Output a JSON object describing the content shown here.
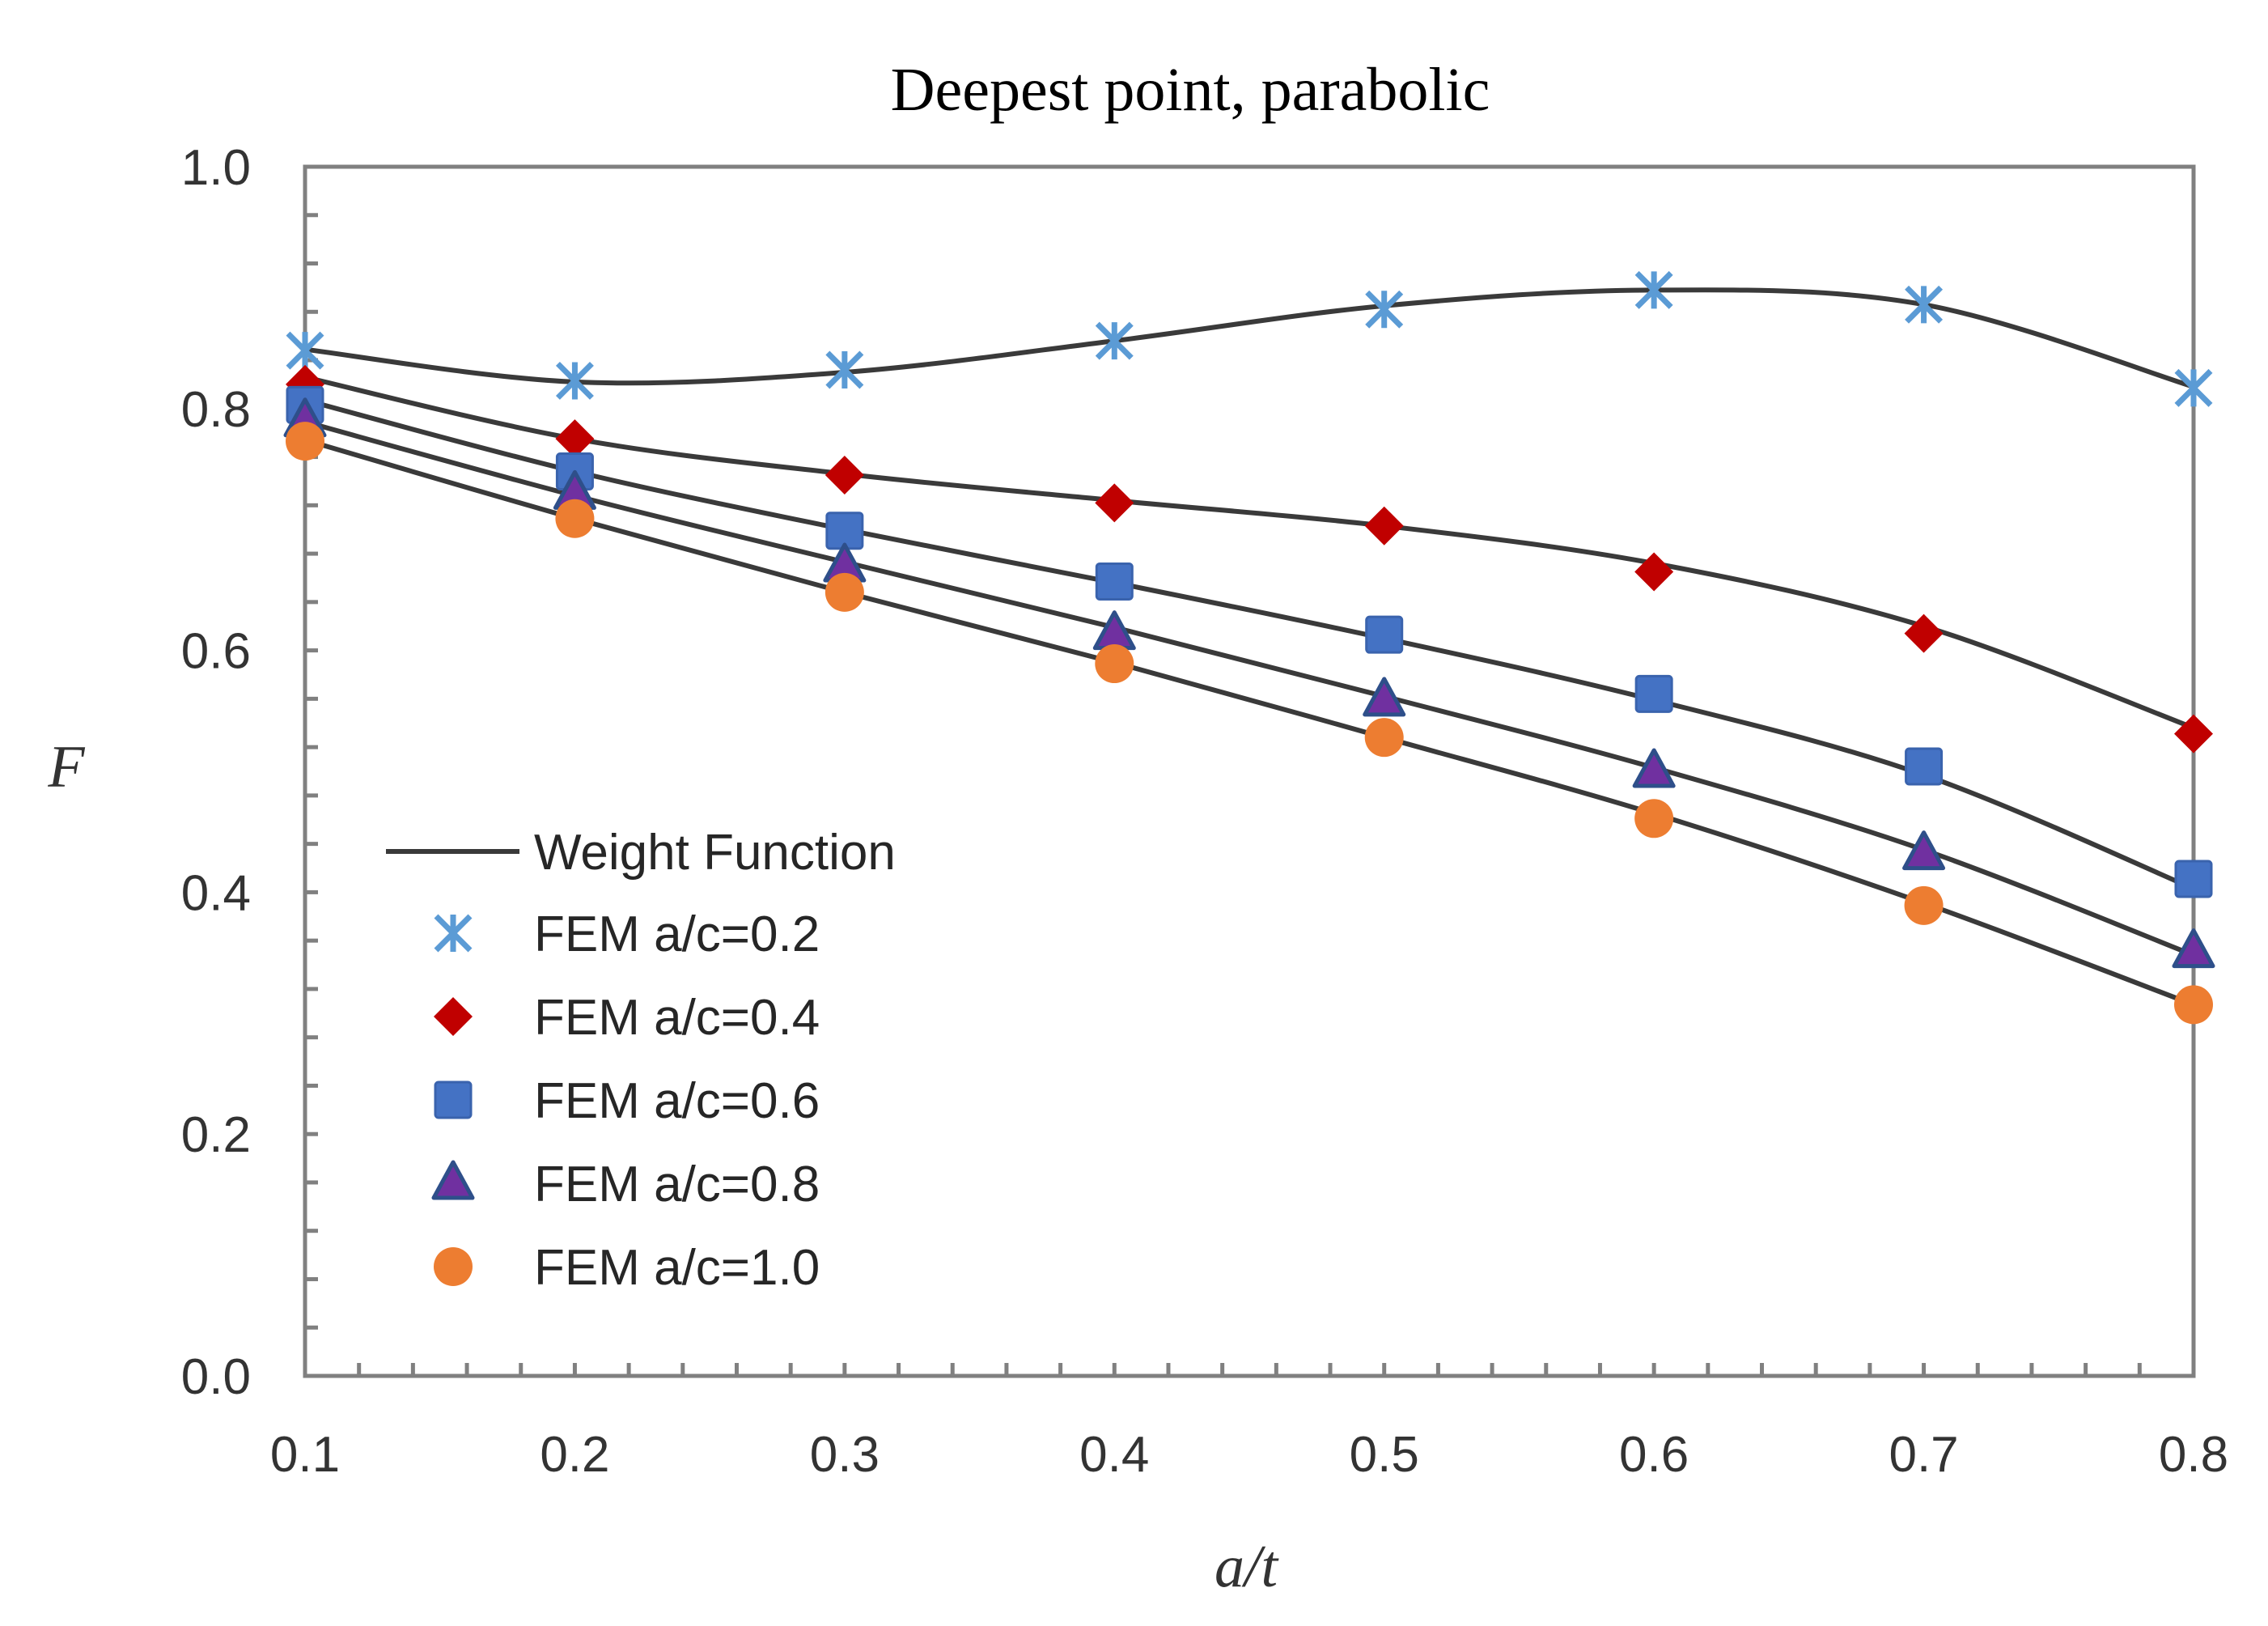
{
  "chart_data": {
    "type": "scatter",
    "title": "Deepest point, parabolic",
    "xlabel": "a/t",
    "ylabel": "F",
    "xlim": [
      0.1,
      0.8
    ],
    "ylim": [
      0.0,
      1.0
    ],
    "x_ticks": [
      "0.1",
      "0.2",
      "0.3",
      "0.4",
      "0.5",
      "0.6",
      "0.7",
      "0.8"
    ],
    "y_ticks": [
      "0.0",
      "0.2",
      "0.4",
      "0.6",
      "0.8",
      "1.0"
    ],
    "grid": false,
    "legend_position": "lower-left",
    "legend": {
      "line_label": "Weight Function",
      "line_color": "#3a3a3a"
    },
    "x": [
      0.1,
      0.2,
      0.3,
      0.4,
      0.5,
      0.6,
      0.7,
      0.8
    ],
    "series": [
      {
        "name": "FEM a/c=0.2",
        "marker": "asterisk",
        "color": "#5b9bd5",
        "values": [
          0.848,
          0.823,
          0.832,
          0.856,
          0.882,
          0.898,
          0.886,
          0.817
        ]
      },
      {
        "name": "FEM a/c=0.4",
        "marker": "diamond",
        "color": "#c00000",
        "values": [
          0.82,
          0.775,
          0.745,
          0.722,
          0.703,
          0.665,
          0.614,
          0.531
        ]
      },
      {
        "name": "FEM a/c=0.6",
        "marker": "square",
        "color": "#4472c4",
        "values": [
          0.803,
          0.748,
          0.699,
          0.657,
          0.613,
          0.564,
          0.504,
          0.411
        ]
      },
      {
        "name": "FEM a/c=0.8",
        "marker": "triangle",
        "color": "#7030a0",
        "edge_color": "#2e4f8a",
        "values": [
          0.79,
          0.73,
          0.67,
          0.614,
          0.559,
          0.5,
          0.432,
          0.351
        ]
      },
      {
        "name": "FEM a/c=1.0",
        "marker": "circle",
        "color": "#ed7d31",
        "values": [
          0.773,
          0.709,
          0.648,
          0.589,
          0.528,
          0.461,
          0.389,
          0.307
        ]
      }
    ],
    "weight_function_curves": [
      {
        "for": "FEM a/c=0.2",
        "values": [
          0.849,
          0.822,
          0.83,
          0.856,
          0.885,
          0.898,
          0.886,
          0.818
        ]
      },
      {
        "for": "FEM a/c=0.4",
        "values": [
          0.826,
          0.775,
          0.746,
          0.724,
          0.703,
          0.672,
          0.62,
          0.536
        ]
      },
      {
        "for": "FEM a/c=0.6",
        "values": [
          0.807,
          0.748,
          0.7,
          0.656,
          0.61,
          0.559,
          0.497,
          0.403
        ]
      },
      {
        "for": "FEM a/c=0.8",
        "values": [
          0.789,
          0.728,
          0.673,
          0.619,
          0.562,
          0.503,
          0.435,
          0.348
        ]
      },
      {
        "for": "FEM a/c=1.0",
        "values": [
          0.774,
          0.709,
          0.648,
          0.59,
          0.528,
          0.465,
          0.391,
          0.307
        ]
      }
    ]
  }
}
